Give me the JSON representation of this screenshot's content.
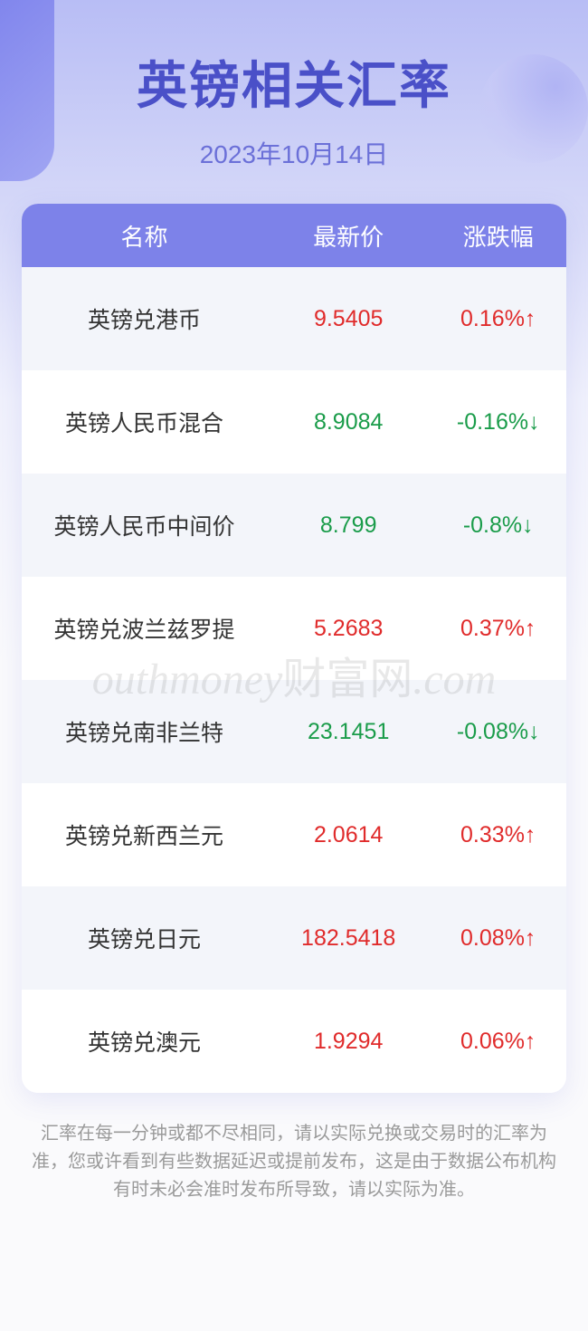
{
  "header": {
    "title": "英镑相关汇率",
    "date": "2023年10月14日",
    "title_color": "#4a50c8",
    "date_color": "#6b70d8"
  },
  "columns": {
    "name": "名称",
    "price": "最新价",
    "change": "涨跌幅"
  },
  "rows": [
    {
      "name": "英镑兑港币",
      "price": "9.5405",
      "change": "0.16%↑",
      "dir": "up"
    },
    {
      "name": "英镑人民币混合",
      "price": "8.9084",
      "change": "-0.16%↓",
      "dir": "down"
    },
    {
      "name": "英镑人民币中间价",
      "price": "8.799",
      "change": "-0.8%↓",
      "dir": "down"
    },
    {
      "name": "英镑兑波兰兹罗提",
      "price": "5.2683",
      "change": "0.37%↑",
      "dir": "up"
    },
    {
      "name": "英镑兑南非兰特",
      "price": "23.1451",
      "change": "-0.08%↓",
      "dir": "down"
    },
    {
      "name": "英镑兑新西兰元",
      "price": "2.0614",
      "change": "0.33%↑",
      "dir": "up"
    },
    {
      "name": "英镑兑日元",
      "price": "182.5418",
      "change": "0.08%↑",
      "dir": "up"
    },
    {
      "name": "英镑兑澳元",
      "price": "1.9294",
      "change": "0.06%↑",
      "dir": "up"
    }
  ],
  "colors": {
    "header_row_bg": "#7d82e9",
    "row_odd_bg": "#f3f5fa",
    "row_even_bg": "#ffffff",
    "up": "#e02b2b",
    "down": "#1a9c4a",
    "name_text": "#333333"
  },
  "watermark": {
    "text_en": "outhmoney",
    "text_cn": "财富网",
    "suffix": ".com"
  },
  "disclaimer": "汇率在每一分钟或都不尽相同，请以实际兑换或交易时的汇率为准，您或许看到有些数据延迟或提前发布，这是由于数据公布机构有时未必会准时发布所导致，请以实际为准。"
}
